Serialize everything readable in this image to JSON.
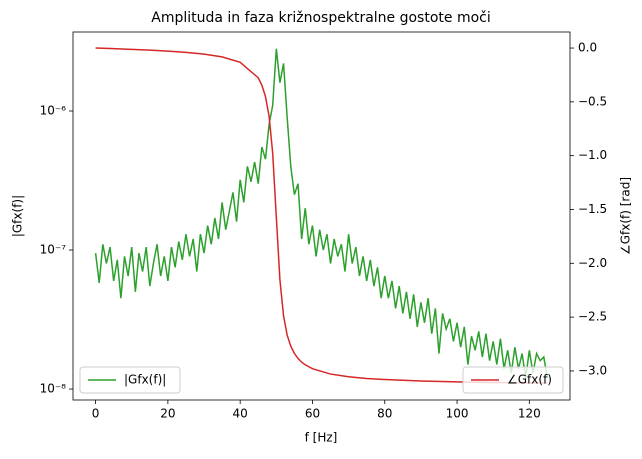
{
  "chart_data": {
    "type": "line",
    "title": "Amplituda in faza križnospektralne gostote moči",
    "xlabel": "f [Hz]",
    "ylabel": "|Gfx(f)|",
    "y2label": "∠Gfx(f) [rad]",
    "xlim": [
      -6.25,
      131.25
    ],
    "xticks": [
      0,
      20,
      40,
      60,
      80,
      100,
      120
    ],
    "ylog": true,
    "ylim": [
      8.34e-09,
      3.7e-06
    ],
    "yticks": [
      {
        "value": 1e-08,
        "label": "10⁻⁸"
      },
      {
        "value": 1e-07,
        "label": "10⁻⁷"
      },
      {
        "value": 1e-06,
        "label": "10⁻⁶"
      }
    ],
    "y2lim": [
      -3.27,
      0.149
    ],
    "y2ticks": [
      {
        "value": 0,
        "label": "0.0"
      },
      {
        "value": -0.5,
        "label": "−0.5"
      },
      {
        "value": -1,
        "label": "−1.0"
      },
      {
        "value": -1.5,
        "label": "−1.5"
      },
      {
        "value": -2,
        "label": "−2.0"
      },
      {
        "value": -2.5,
        "label": "−2.5"
      },
      {
        "value": -3,
        "label": "−3.0"
      }
    ],
    "series": [
      {
        "name": "|Gfx(f)|",
        "color": "#2ca02c",
        "axis": "y",
        "legend": "lower left",
        "x": [
          0,
          1,
          2,
          3,
          4,
          5,
          6,
          7,
          8,
          9,
          10,
          11,
          12,
          13,
          14,
          15,
          16,
          17,
          18,
          19,
          20,
          21,
          22,
          23,
          24,
          25,
          26,
          27,
          28,
          29,
          30,
          31,
          32,
          33,
          34,
          35,
          36,
          37,
          38,
          39,
          40,
          41,
          42,
          43,
          44,
          45,
          46,
          47,
          48,
          49,
          50,
          51,
          52,
          53,
          54,
          55,
          56,
          57,
          58,
          59,
          60,
          61,
          62,
          63,
          64,
          65,
          66,
          67,
          68,
          69,
          70,
          71,
          72,
          73,
          74,
          75,
          76,
          77,
          78,
          79,
          80,
          81,
          82,
          83,
          84,
          85,
          86,
          87,
          88,
          89,
          90,
          91,
          92,
          93,
          94,
          95,
          96,
          97,
          98,
          99,
          100,
          101,
          102,
          103,
          104,
          105,
          106,
          107,
          108,
          109,
          110,
          111,
          112,
          113,
          114,
          115,
          116,
          117,
          118,
          119,
          120,
          121,
          122,
          123,
          124,
          125
        ],
        "values": [
          9.5e-08,
          5.8e-08,
          1.1e-07,
          8e-08,
          1.05e-07,
          6e-08,
          8.5e-08,
          4.5e-08,
          9e-08,
          6.5e-08,
          1.05e-07,
          5e-08,
          9.5e-08,
          7e-08,
          1.05e-07,
          5.5e-08,
          8e-08,
          1.1e-07,
          6.5e-08,
          9e-08,
          6e-08,
          1.05e-07,
          7.5e-08,
          1.15e-07,
          8.5e-08,
          1.3e-07,
          9e-08,
          1.2e-07,
          7e-08,
          1.3e-07,
          9.5e-08,
          1.5e-07,
          1.1e-07,
          1.7e-07,
          1.2e-07,
          2.2e-07,
          1.4e-07,
          1.9e-07,
          2.6e-07,
          1.6e-07,
          3.2e-07,
          2.2e-07,
          4e-07,
          3.1e-07,
          4.3e-07,
          3e-07,
          5.5e-07,
          4.5e-07,
          8e-07,
          1.1e-06,
          2.8e-06,
          1.6e-06,
          2.2e-06,
          9e-07,
          4e-07,
          2.5e-07,
          3e-07,
          1.2e-07,
          2e-07,
          1.1e-07,
          1.5e-07,
          9e-08,
          1.4e-07,
          1e-07,
          1.3e-07,
          8e-08,
          1.2e-07,
          9e-08,
          1.1e-07,
          7e-08,
          1.3e-07,
          8e-08,
          1.05e-07,
          6.5e-08,
          9e-08,
          6e-08,
          8.5e-08,
          5.5e-08,
          7.5e-08,
          4.5e-08,
          6.5e-08,
          4.5e-08,
          6e-08,
          3.8e-08,
          5.5e-08,
          3.5e-08,
          5e-08,
          3.2e-08,
          4.8e-08,
          2.8e-08,
          4.2e-08,
          3e-08,
          4.5e-08,
          2.5e-08,
          3.8e-08,
          1.8e-08,
          3.5e-08,
          2.7e-08,
          3.2e-08,
          2.2e-08,
          3e-08,
          2e-08,
          2.8e-08,
          1.5e-08,
          2.4e-08,
          1.9e-08,
          2.6e-08,
          1.7e-08,
          2.5e-08,
          1.6e-08,
          2.2e-08,
          1.5e-08,
          2.3e-08,
          1.4e-08,
          1.9e-08,
          1.3e-08,
          2e-08,
          1.4e-08,
          1.8e-08,
          1.2e-08,
          1.9e-08,
          1.3e-08,
          1.8e-08,
          1.6e-08,
          1.7e-08,
          1.2e-08
        ]
      },
      {
        "name": "∠Gfx(f)",
        "color": "#d62728",
        "axis": "y2",
        "legend": "lower right",
        "x": [
          0,
          5,
          10,
          15,
          20,
          25,
          30,
          35,
          40,
          45,
          46,
          47,
          48,
          49,
          50,
          51,
          52,
          53,
          54,
          55,
          56,
          57,
          58,
          60,
          65,
          70,
          75,
          80,
          90,
          100,
          110,
          120,
          125
        ],
        "values": [
          0,
          -0.006,
          -0.0125,
          -0.0198,
          -0.0286,
          -0.04,
          -0.0563,
          -0.0824,
          -0.1326,
          -0.277,
          -0.345,
          -0.451,
          -0.633,
          -0.978,
          -1.571,
          -2.155,
          -2.489,
          -2.667,
          -2.77,
          -2.837,
          -2.884,
          -2.918,
          -2.943,
          -2.979,
          -3.029,
          -3.054,
          -3.07,
          -3.08,
          -3.093,
          -3.102,
          -3.107,
          -3.111,
          -3.113
        ]
      }
    ]
  }
}
